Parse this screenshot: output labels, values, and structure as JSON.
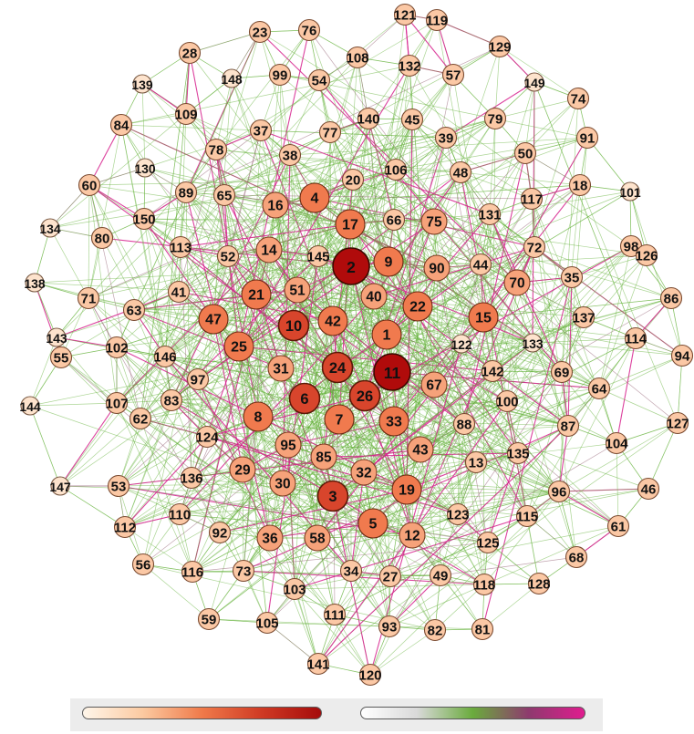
{
  "colors": {
    "background": "#ffffff",
    "edge_low": "#66b23c",
    "edge_high": "#d6218d",
    "node_low": "#fde0c5",
    "node_mid": "#f08050",
    "node_high": "#b00b0b",
    "node_stroke": "#5a2a14",
    "label": "#111111",
    "legend_panel": "#ececec"
  },
  "legend": {
    "node_scale": {
      "gradient": [
        "#fff6ea",
        "#fbcaa1",
        "#f07a4a",
        "#cf3a24",
        "#a50b0b"
      ]
    },
    "edge_scale": {
      "gradient": [
        "#ffffff",
        "#d9d9d9",
        "#6aab3d",
        "#8e3a6e",
        "#e01c8f"
      ]
    }
  },
  "nodes": [
    {
      "id": "1",
      "level": 3
    },
    {
      "id": "2",
      "level": 5
    },
    {
      "id": "3",
      "level": 4
    },
    {
      "id": "4",
      "level": 3
    },
    {
      "id": "5",
      "level": 3
    },
    {
      "id": "6",
      "level": 4
    },
    {
      "id": "7",
      "level": 3
    },
    {
      "id": "8",
      "level": 3
    },
    {
      "id": "9",
      "level": 3
    },
    {
      "id": "10",
      "level": 4
    },
    {
      "id": "11",
      "level": 5
    },
    {
      "id": "12",
      "level": 2
    },
    {
      "id": "13",
      "level": 1
    },
    {
      "id": "14",
      "level": 2
    },
    {
      "id": "15",
      "level": 3
    },
    {
      "id": "16",
      "level": 2
    },
    {
      "id": "17",
      "level": 3
    },
    {
      "id": "18",
      "level": 1
    },
    {
      "id": "19",
      "level": 3
    },
    {
      "id": "20",
      "level": 1
    },
    {
      "id": "21",
      "level": 3
    },
    {
      "id": "22",
      "level": 3
    },
    {
      "id": "23",
      "level": 1
    },
    {
      "id": "24",
      "level": 4
    },
    {
      "id": "25",
      "level": 3
    },
    {
      "id": "26",
      "level": 4
    },
    {
      "id": "27",
      "level": 1
    },
    {
      "id": "28",
      "level": 1
    },
    {
      "id": "29",
      "level": 2
    },
    {
      "id": "30",
      "level": 2
    },
    {
      "id": "31",
      "level": 2
    },
    {
      "id": "32",
      "level": 2
    },
    {
      "id": "33",
      "level": 3
    },
    {
      "id": "34",
      "level": 1
    },
    {
      "id": "35",
      "level": 1
    },
    {
      "id": "36",
      "level": 2
    },
    {
      "id": "37",
      "level": 1
    },
    {
      "id": "38",
      "level": 1
    },
    {
      "id": "39",
      "level": 1
    },
    {
      "id": "40",
      "level": 2
    },
    {
      "id": "41",
      "level": 1
    },
    {
      "id": "42",
      "level": 3
    },
    {
      "id": "43",
      "level": 2
    },
    {
      "id": "44",
      "level": 1
    },
    {
      "id": "45",
      "level": 1
    },
    {
      "id": "46",
      "level": 1
    },
    {
      "id": "47",
      "level": 3
    },
    {
      "id": "48",
      "level": 1
    },
    {
      "id": "49",
      "level": 1
    },
    {
      "id": "50",
      "level": 1
    },
    {
      "id": "51",
      "level": 2
    },
    {
      "id": "52",
      "level": 1
    },
    {
      "id": "53",
      "level": 1
    },
    {
      "id": "54",
      "level": 1
    },
    {
      "id": "55",
      "level": 1
    },
    {
      "id": "56",
      "level": 1
    },
    {
      "id": "57",
      "level": 1
    },
    {
      "id": "58",
      "level": 2
    },
    {
      "id": "59",
      "level": 1
    },
    {
      "id": "60",
      "level": 1
    },
    {
      "id": "61",
      "level": 1
    },
    {
      "id": "62",
      "level": 1
    },
    {
      "id": "63",
      "level": 1
    },
    {
      "id": "64",
      "level": 1
    },
    {
      "id": "65",
      "level": 1
    },
    {
      "id": "66",
      "level": 1
    },
    {
      "id": "67",
      "level": 2
    },
    {
      "id": "68",
      "level": 1
    },
    {
      "id": "69",
      "level": 1
    },
    {
      "id": "70",
      "level": 2
    },
    {
      "id": "71",
      "level": 1
    },
    {
      "id": "72",
      "level": 1
    },
    {
      "id": "73",
      "level": 1
    },
    {
      "id": "74",
      "level": 1
    },
    {
      "id": "75",
      "level": 2
    },
    {
      "id": "76",
      "level": 1
    },
    {
      "id": "77",
      "level": 1
    },
    {
      "id": "78",
      "level": 1
    },
    {
      "id": "79",
      "level": 1
    },
    {
      "id": "80",
      "level": 1
    },
    {
      "id": "81",
      "level": 1
    },
    {
      "id": "82",
      "level": 1
    },
    {
      "id": "83",
      "level": 1
    },
    {
      "id": "84",
      "level": 1
    },
    {
      "id": "85",
      "level": 2
    },
    {
      "id": "86",
      "level": 1
    },
    {
      "id": "87",
      "level": 1
    },
    {
      "id": "88",
      "level": 1
    },
    {
      "id": "89",
      "level": 1
    },
    {
      "id": "90",
      "level": 2
    },
    {
      "id": "91",
      "level": 1
    },
    {
      "id": "92",
      "level": 1
    },
    {
      "id": "93",
      "level": 1
    },
    {
      "id": "94",
      "level": 1
    },
    {
      "id": "95",
      "level": 2
    },
    {
      "id": "96",
      "level": 1
    },
    {
      "id": "97",
      "level": 1
    },
    {
      "id": "98",
      "level": 1
    },
    {
      "id": "99",
      "level": 1
    },
    {
      "id": "100",
      "level": 1
    },
    {
      "id": "101",
      "level": 0
    },
    {
      "id": "102",
      "level": 1
    },
    {
      "id": "103",
      "level": 1
    },
    {
      "id": "104",
      "level": 1
    },
    {
      "id": "105",
      "level": 1
    },
    {
      "id": "106",
      "level": 1
    },
    {
      "id": "107",
      "level": 1
    },
    {
      "id": "108",
      "level": 1
    },
    {
      "id": "109",
      "level": 1
    },
    {
      "id": "110",
      "level": 1
    },
    {
      "id": "111",
      "level": 1
    },
    {
      "id": "112",
      "level": 1
    },
    {
      "id": "113",
      "level": 1
    },
    {
      "id": "114",
      "level": 1
    },
    {
      "id": "115",
      "level": 1
    },
    {
      "id": "116",
      "level": 1
    },
    {
      "id": "117",
      "level": 1
    },
    {
      "id": "118",
      "level": 1
    },
    {
      "id": "119",
      "level": 1
    },
    {
      "id": "120",
      "level": 1
    },
    {
      "id": "121",
      "level": 1
    },
    {
      "id": "122",
      "level": 0
    },
    {
      "id": "123",
      "level": 1
    },
    {
      "id": "124",
      "level": 1
    },
    {
      "id": "125",
      "level": 1
    },
    {
      "id": "126",
      "level": 1
    },
    {
      "id": "127",
      "level": 1
    },
    {
      "id": "128",
      "level": 1
    },
    {
      "id": "129",
      "level": 1
    },
    {
      "id": "130",
      "level": 0
    },
    {
      "id": "131",
      "level": 1
    },
    {
      "id": "132",
      "level": 1
    },
    {
      "id": "133",
      "level": 0
    },
    {
      "id": "134",
      "level": 0
    },
    {
      "id": "135",
      "level": 1
    },
    {
      "id": "136",
      "level": 1
    },
    {
      "id": "137",
      "level": 1
    },
    {
      "id": "138",
      "level": 0
    },
    {
      "id": "139",
      "level": 0
    },
    {
      "id": "140",
      "level": 1
    },
    {
      "id": "141",
      "level": 1
    },
    {
      "id": "142",
      "level": 1
    },
    {
      "id": "143",
      "level": 0
    },
    {
      "id": "144",
      "level": 0
    },
    {
      "id": "145",
      "level": 1
    },
    {
      "id": "146",
      "level": 1
    },
    {
      "id": "147",
      "level": 0
    },
    {
      "id": "148",
      "level": 0
    },
    {
      "id": "149",
      "level": 0
    },
    {
      "id": "150",
      "level": 1
    }
  ]
}
